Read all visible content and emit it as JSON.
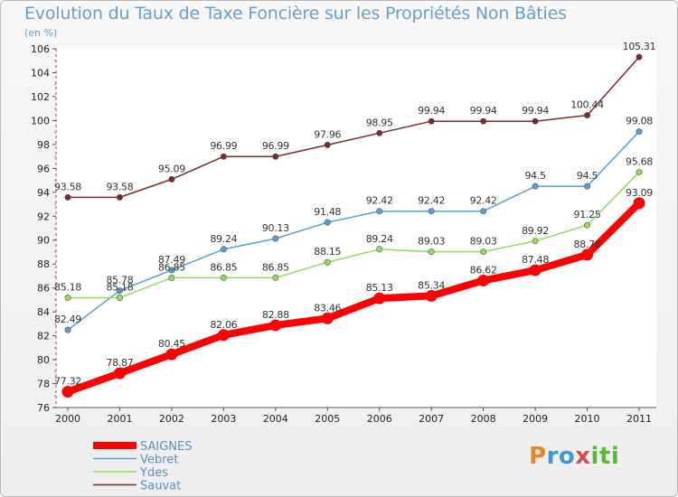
{
  "title": "Evolution du Taux de Taxe Foncière sur les Propriétés Non Bâties",
  "subtitle": "(en %)",
  "logo": {
    "text": "Proxiti",
    "parts": [
      "P",
      "ro",
      "x",
      "iti"
    ]
  },
  "chart_data": {
    "type": "line",
    "x": [
      "2000",
      "2001",
      "2002",
      "2003",
      "2004",
      "2005",
      "2006",
      "2007",
      "2008",
      "2009",
      "2010",
      "2011"
    ],
    "ylim": [
      76,
      106
    ],
    "yticks": [
      76,
      78,
      80,
      82,
      84,
      86,
      88,
      90,
      92,
      94,
      96,
      98,
      100,
      102,
      104,
      106
    ],
    "grid": false,
    "legend_position": "bottom-left",
    "series": [
      {
        "name": "SAIGNES",
        "color": "#ff0000",
        "values": [
          77.32,
          78.87,
          80.45,
          82.06,
          82.88,
          83.46,
          85.13,
          85.34,
          86.62,
          87.48,
          88.78,
          93.09
        ],
        "labels": [
          "77.32",
          "78.87",
          "80.45",
          "82.06",
          "82.88",
          "83.46",
          "85.13",
          "85.34",
          "86.62",
          "87.48",
          "88.78",
          "93.09"
        ]
      },
      {
        "name": "Vebret",
        "color": "#5b9ed6",
        "values": [
          82.49,
          85.78,
          87.49,
          89.24,
          90.13,
          91.48,
          92.42,
          92.42,
          92.42,
          94.5,
          94.5,
          99.08
        ],
        "labels": [
          "82.49",
          "85.78",
          "87.49",
          "89.24",
          "90.13",
          "91.48",
          "92.42",
          "92.42",
          "92.42",
          "94.5",
          "94.5",
          "99.08"
        ]
      },
      {
        "name": "Ydes",
        "color": "#8fdc5c",
        "values": [
          85.18,
          85.18,
          86.85,
          86.85,
          86.85,
          88.15,
          89.24,
          89.03,
          89.03,
          89.92,
          91.25,
          95.68
        ],
        "labels": [
          "85.18",
          "85.18",
          "86.85",
          "86.85",
          "86.85",
          "88.15",
          "89.24",
          "89.03",
          "89.03",
          "89.92",
          "91.25",
          "95.68"
        ]
      },
      {
        "name": "Sauvat",
        "color": "#7a2a2a",
        "values": [
          93.58,
          93.58,
          95.09,
          96.99,
          96.99,
          97.96,
          98.95,
          99.94,
          99.94,
          99.94,
          100.44,
          105.31
        ],
        "labels": [
          "93.58",
          "93.58",
          "95.09",
          "96.99",
          "96.99",
          "97.96",
          "98.95",
          "99.94",
          "99.94",
          "99.94",
          "100.44",
          "105.31"
        ]
      }
    ]
  }
}
